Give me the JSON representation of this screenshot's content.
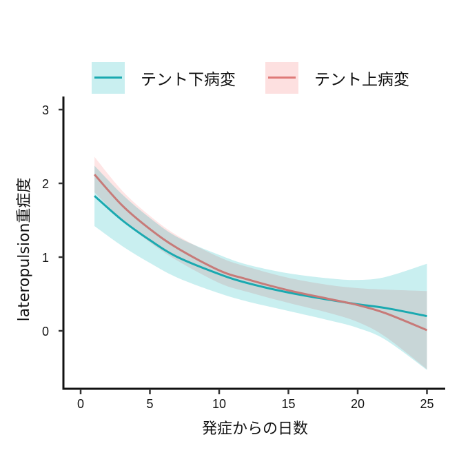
{
  "chart_data": {
    "type": "line",
    "title": "",
    "xlabel": "発症からの日数",
    "ylabel": "lateropulsion重症度",
    "xlim": [
      -1.2,
      26.3
    ],
    "ylim": [
      -0.78,
      3.2
    ],
    "xticks": [
      0,
      5,
      10,
      15,
      20,
      25
    ],
    "yticks": [
      0,
      1,
      2,
      3
    ],
    "grid": false,
    "legend_position": "top",
    "x": [
      1,
      3,
      5,
      7,
      10,
      12,
      15,
      18,
      20,
      22,
      25
    ],
    "series": [
      {
        "name": "テント下病変",
        "color": "#1aa9b0",
        "band_color": "#c9eff0",
        "values": [
          1.83,
          1.5,
          1.23,
          1.0,
          0.77,
          0.65,
          0.52,
          0.42,
          0.36,
          0.31,
          0.2
        ],
        "lower": [
          1.42,
          1.15,
          0.92,
          0.72,
          0.51,
          0.4,
          0.27,
          0.14,
          0.04,
          -0.12,
          -0.53
        ],
        "upper": [
          2.24,
          1.85,
          1.53,
          1.27,
          1.03,
          0.9,
          0.78,
          0.71,
          0.69,
          0.73,
          0.91
        ]
      },
      {
        "name": "テント上病変",
        "color": "#c77a78",
        "band_color": "#fddcdc",
        "values": [
          2.12,
          1.7,
          1.38,
          1.12,
          0.82,
          0.7,
          0.55,
          0.43,
          0.35,
          0.24,
          0.01
        ],
        "lower": [
          1.88,
          1.5,
          1.2,
          0.95,
          0.65,
          0.53,
          0.38,
          0.24,
          0.12,
          -0.08,
          -0.52
        ],
        "upper": [
          2.36,
          1.9,
          1.56,
          1.29,
          1.0,
          0.87,
          0.72,
          0.62,
          0.58,
          0.56,
          0.54
        ]
      }
    ]
  },
  "legend": {
    "items": [
      {
        "label": "テント下病変",
        "line_color": "#1aa9b0",
        "fill_color": "#c9eff0"
      },
      {
        "label": "テント上病変",
        "line_color": "#df7a78",
        "fill_color": "#fde0e0"
      }
    ]
  },
  "axes": {
    "x_title": "発症からの日数",
    "y_title": "lateropulsion重症度"
  }
}
